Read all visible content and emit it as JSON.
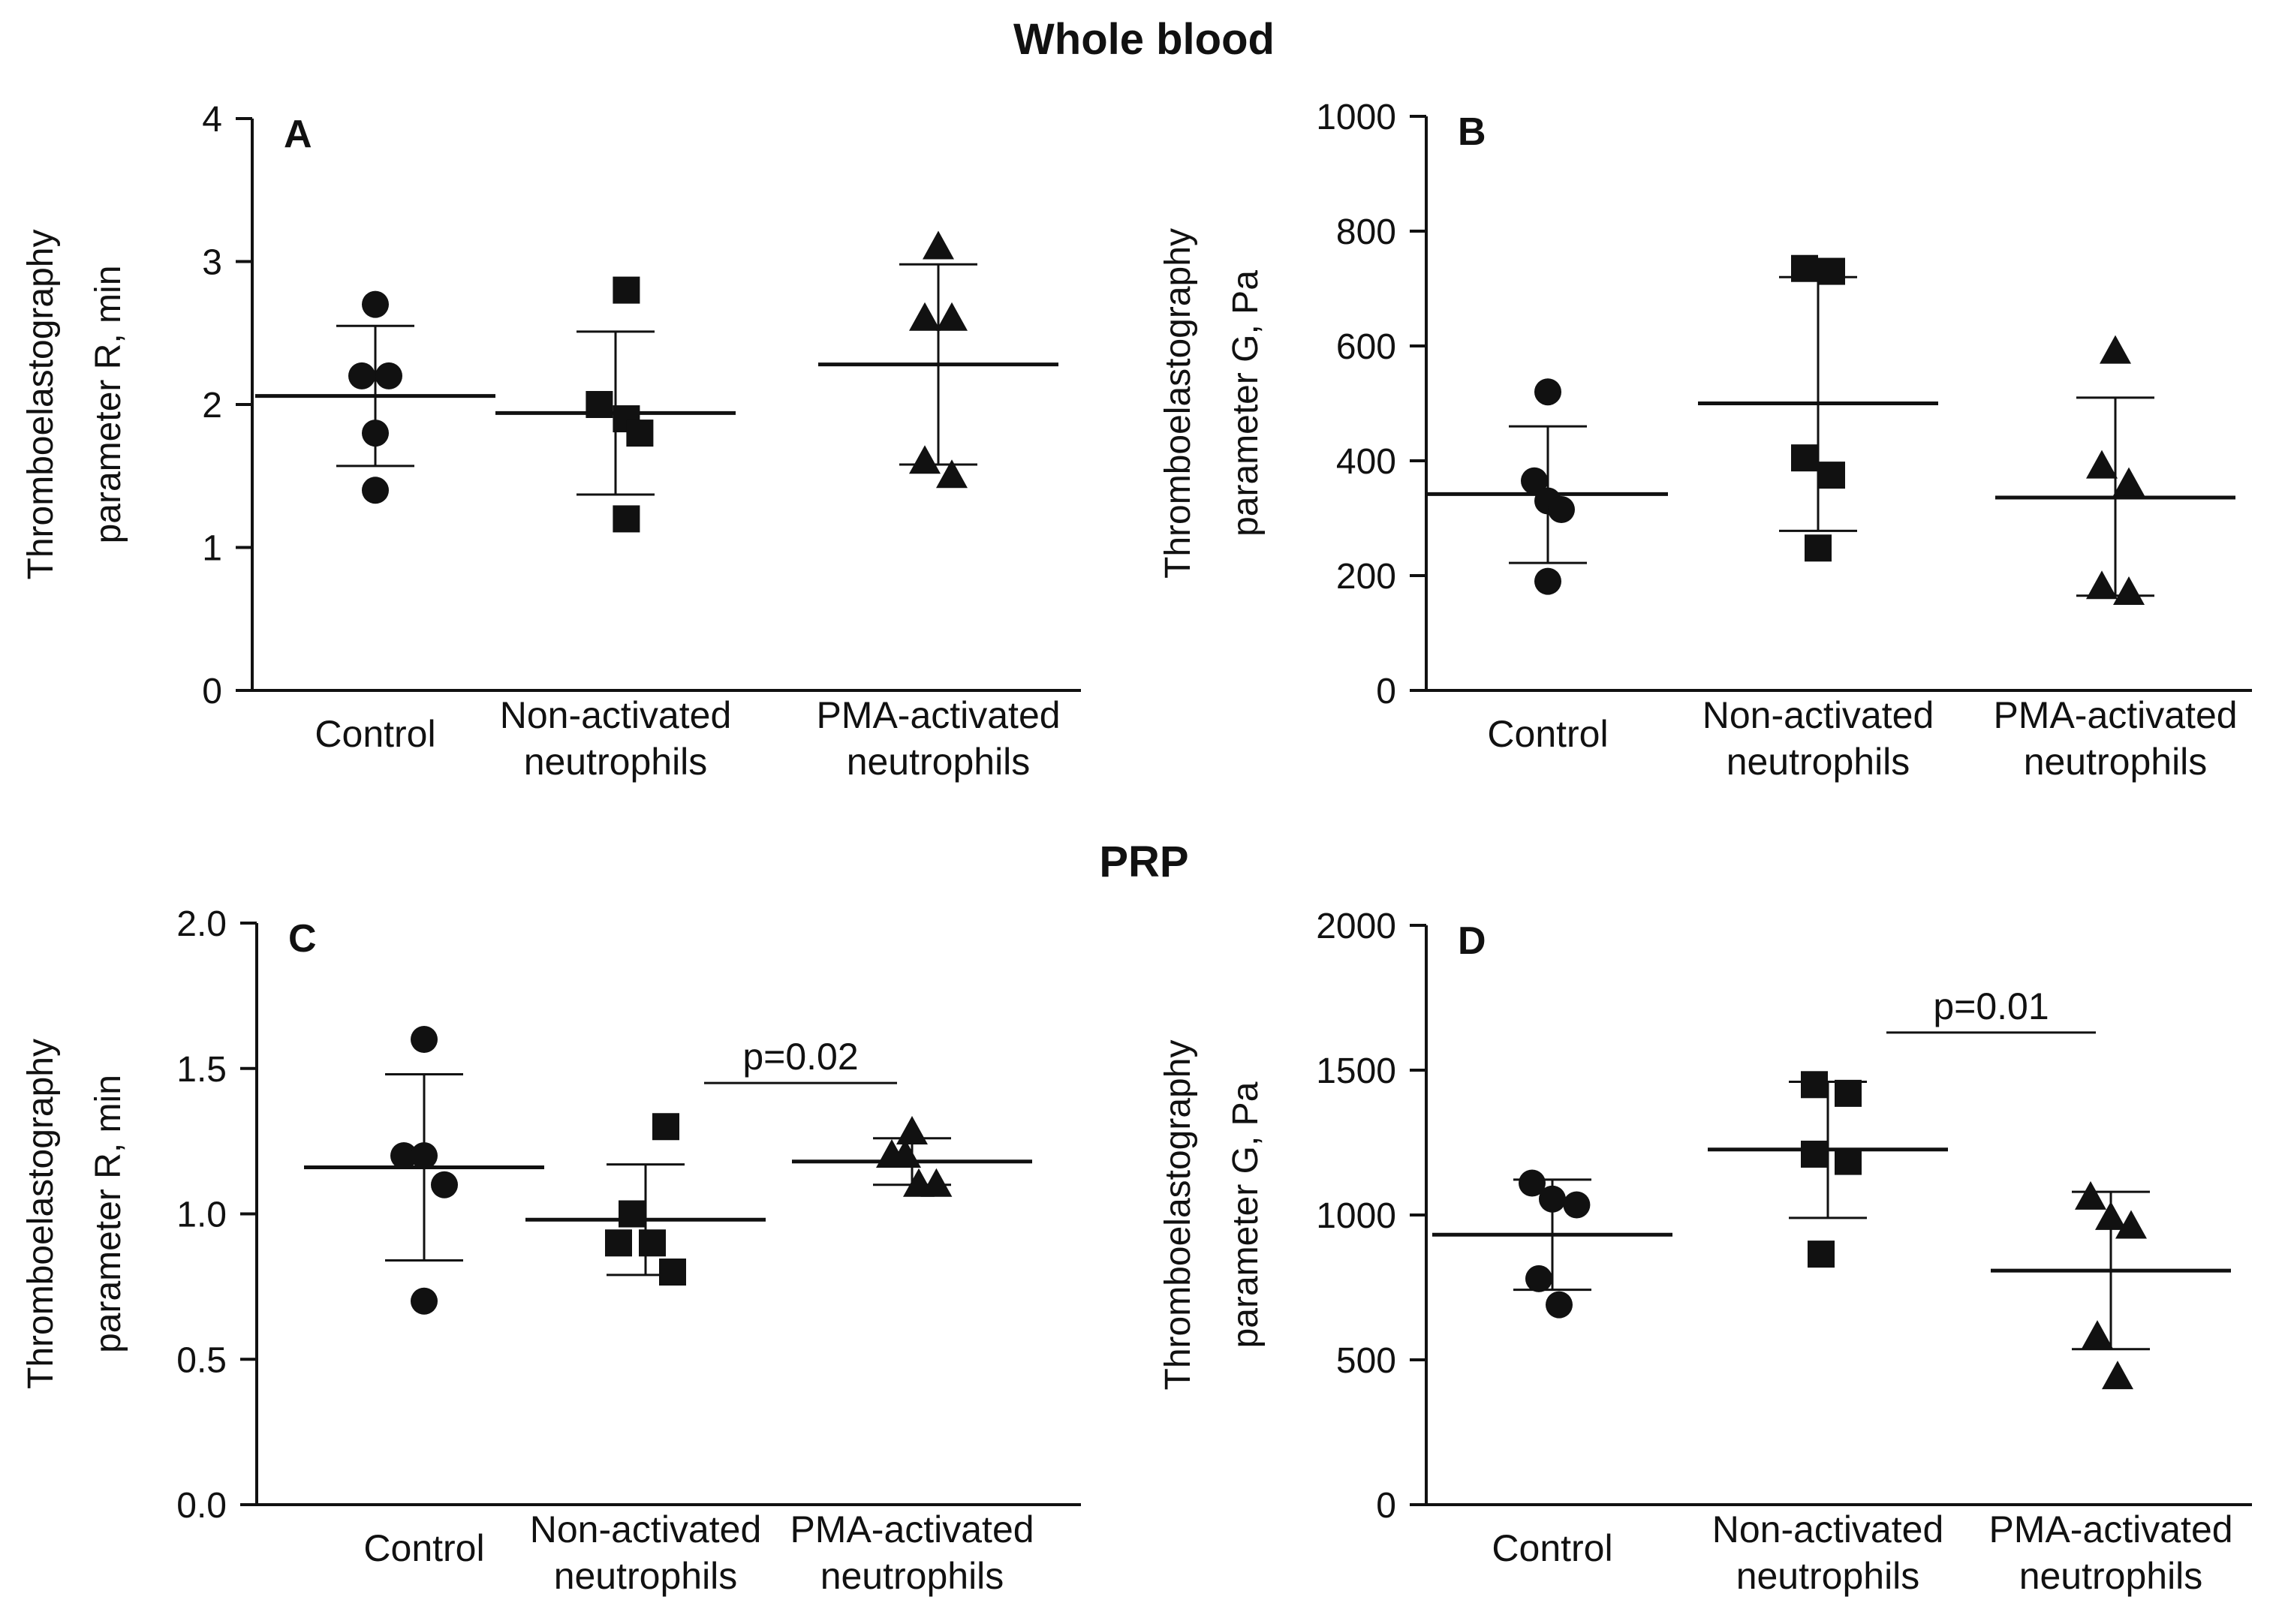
{
  "titles": {
    "whole_blood": "Whole blood",
    "prp": "PRP"
  },
  "colors": {
    "ink": "#111111",
    "background": "#ffffff"
  },
  "chart_data": [
    {
      "type": "scatter",
      "panel": "A",
      "section": "Whole blood",
      "ylabel_lines": [
        "Thromboelastography",
        "parameter R, min"
      ],
      "ylim": [
        0,
        4
      ],
      "yticks": [
        "0",
        "1",
        "2",
        "3",
        "4"
      ],
      "ytick_values": [
        0,
        1,
        2,
        3,
        4
      ],
      "categories": [
        [
          "Control"
        ],
        [
          "Non-activated",
          "neutrophils"
        ],
        [
          "PMA-activated",
          "neutrophils"
        ]
      ],
      "series": [
        {
          "category": 0,
          "marker": "circle",
          "points": [
            [
              -0.1,
              2.2
            ],
            [
              0.1,
              2.2
            ],
            [
              0.0,
              2.7
            ],
            [
              0.0,
              1.8
            ],
            [
              0.0,
              1.4
            ]
          ],
          "mean": 2.06,
          "sd_low": 1.57,
          "sd_high": 2.55
        },
        {
          "category": 1,
          "marker": "square",
          "points": [
            [
              -0.12,
              2.0
            ],
            [
              0.08,
              2.8
            ],
            [
              0.08,
              1.9
            ],
            [
              0.18,
              1.8
            ],
            [
              0.08,
              1.2
            ]
          ],
          "mean": 1.94,
          "sd_low": 1.37,
          "sd_high": 2.51
        },
        {
          "category": 2,
          "marker": "triangle",
          "points": [
            [
              0.0,
              3.1
            ],
            [
              -0.1,
              2.6
            ],
            [
              0.1,
              2.6
            ],
            [
              -0.1,
              1.6
            ],
            [
              0.1,
              1.5
            ]
          ],
          "mean": 2.28,
          "sd_low": 1.58,
          "sd_high": 2.98
        }
      ],
      "significance": null
    },
    {
      "type": "scatter",
      "panel": "B",
      "section": "Whole blood",
      "ylabel_lines": [
        "Thromboelastography",
        "parameter G, Pa"
      ],
      "ylim": [
        0,
        1000
      ],
      "yticks": [
        "0",
        "200",
        "400",
        "600",
        "800",
        "1000"
      ],
      "ytick_values": [
        0,
        200,
        400,
        600,
        800,
        1000
      ],
      "categories": [
        [
          "Control"
        ],
        [
          "Non-activated",
          "neutrophils"
        ],
        [
          "PMA-activated",
          "neutrophils"
        ]
      ],
      "series": [
        {
          "category": 0,
          "marker": "circle",
          "points": [
            [
              0.0,
              520
            ],
            [
              -0.1,
              365
            ],
            [
              0.0,
              330
            ],
            [
              0.1,
              315
            ],
            [
              0.0,
              190
            ]
          ],
          "mean": 342,
          "sd_low": 222,
          "sd_high": 460
        },
        {
          "category": 1,
          "marker": "square",
          "points": [
            [
              -0.1,
              735
            ],
            [
              0.1,
              730
            ],
            [
              -0.1,
              405
            ],
            [
              0.1,
              375
            ],
            [
              0.0,
              248
            ]
          ],
          "mean": 500,
          "sd_low": 278,
          "sd_high": 720
        },
        {
          "category": 2,
          "marker": "triangle",
          "points": [
            [
              0.0,
              590
            ],
            [
              -0.1,
              390
            ],
            [
              0.1,
              360
            ],
            [
              -0.1,
              180
            ],
            [
              0.1,
              170
            ]
          ],
          "mean": 336,
          "sd_low": 165,
          "sd_high": 510
        }
      ],
      "significance": null
    },
    {
      "type": "scatter",
      "panel": "C",
      "section": "PRP",
      "ylabel_lines": [
        "Thromboelastography",
        "parameter R, min"
      ],
      "ylim": [
        0,
        2.0
      ],
      "yticks": [
        "0.0",
        "0.5",
        "1.0",
        "1.5",
        "2.0"
      ],
      "ytick_values": [
        0,
        0.5,
        1.0,
        1.5,
        2.0
      ],
      "categories": [
        [
          "Control"
        ],
        [
          "Non-activated",
          "neutrophils"
        ],
        [
          "PMA-activated",
          "neutrophils"
        ]
      ],
      "series": [
        {
          "category": 0,
          "marker": "circle",
          "points": [
            [
              0.0,
              1.6
            ],
            [
              -0.15,
              1.2
            ],
            [
              0.0,
              1.2
            ],
            [
              0.15,
              1.1
            ],
            [
              0.0,
              0.7
            ]
          ],
          "mean": 1.16,
          "sd_low": 0.84,
          "sd_high": 1.48
        },
        {
          "category": 1,
          "marker": "square",
          "points": [
            [
              0.15,
              1.3
            ],
            [
              -0.1,
              1.0
            ],
            [
              -0.2,
              0.9
            ],
            [
              0.05,
              0.9
            ],
            [
              0.2,
              0.8
            ]
          ],
          "mean": 0.98,
          "sd_low": 0.79,
          "sd_high": 1.17
        },
        {
          "category": 2,
          "marker": "triangle",
          "points": [
            [
              0.0,
              1.28
            ],
            [
              -0.15,
              1.2
            ],
            [
              -0.05,
              1.2
            ],
            [
              0.05,
              1.1
            ],
            [
              0.18,
              1.1
            ]
          ],
          "mean": 1.18,
          "sd_low": 1.1,
          "sd_high": 1.26
        }
      ],
      "significance": {
        "label": "p=0.02",
        "from_category": 1,
        "to_category": 2,
        "y": 1.45
      }
    },
    {
      "type": "scatter",
      "panel": "D",
      "section": "PRP",
      "ylabel_lines": [
        "Thromboelastography",
        "parameter G, Pa"
      ],
      "ylim": [
        0,
        2000
      ],
      "yticks": [
        "0",
        "500",
        "1000",
        "1500",
        "2000"
      ],
      "ytick_values": [
        0,
        500,
        1000,
        1500,
        2000
      ],
      "categories": [
        [
          "Control"
        ],
        [
          "Non-activated",
          "neutrophils"
        ],
        [
          "PMA-activated",
          "neutrophils"
        ]
      ],
      "series": [
        {
          "category": 0,
          "marker": "circle",
          "points": [
            [
              -0.15,
              1110
            ],
            [
              0.0,
              1055
            ],
            [
              0.18,
              1035
            ],
            [
              -0.1,
              780
            ],
            [
              0.05,
              690
            ]
          ],
          "mean": 932,
          "sd_low": 742,
          "sd_high": 1122
        },
        {
          "category": 1,
          "marker": "square",
          "points": [
            [
              -0.1,
              1450
            ],
            [
              0.15,
              1420
            ],
            [
              -0.1,
              1210
            ],
            [
              0.15,
              1185
            ],
            [
              -0.05,
              865
            ]
          ],
          "mean": 1226,
          "sd_low": 990,
          "sd_high": 1460
        },
        {
          "category": 2,
          "marker": "triangle",
          "points": [
            [
              -0.15,
              1060
            ],
            [
              0.0,
              990
            ],
            [
              0.15,
              960
            ],
            [
              -0.1,
              580
            ],
            [
              0.05,
              440
            ]
          ],
          "mean": 808,
          "sd_low": 537,
          "sd_high": 1080
        }
      ],
      "significance": {
        "label": "p=0.01",
        "from_category": 1,
        "to_category": 2,
        "y": 1630
      }
    }
  ]
}
